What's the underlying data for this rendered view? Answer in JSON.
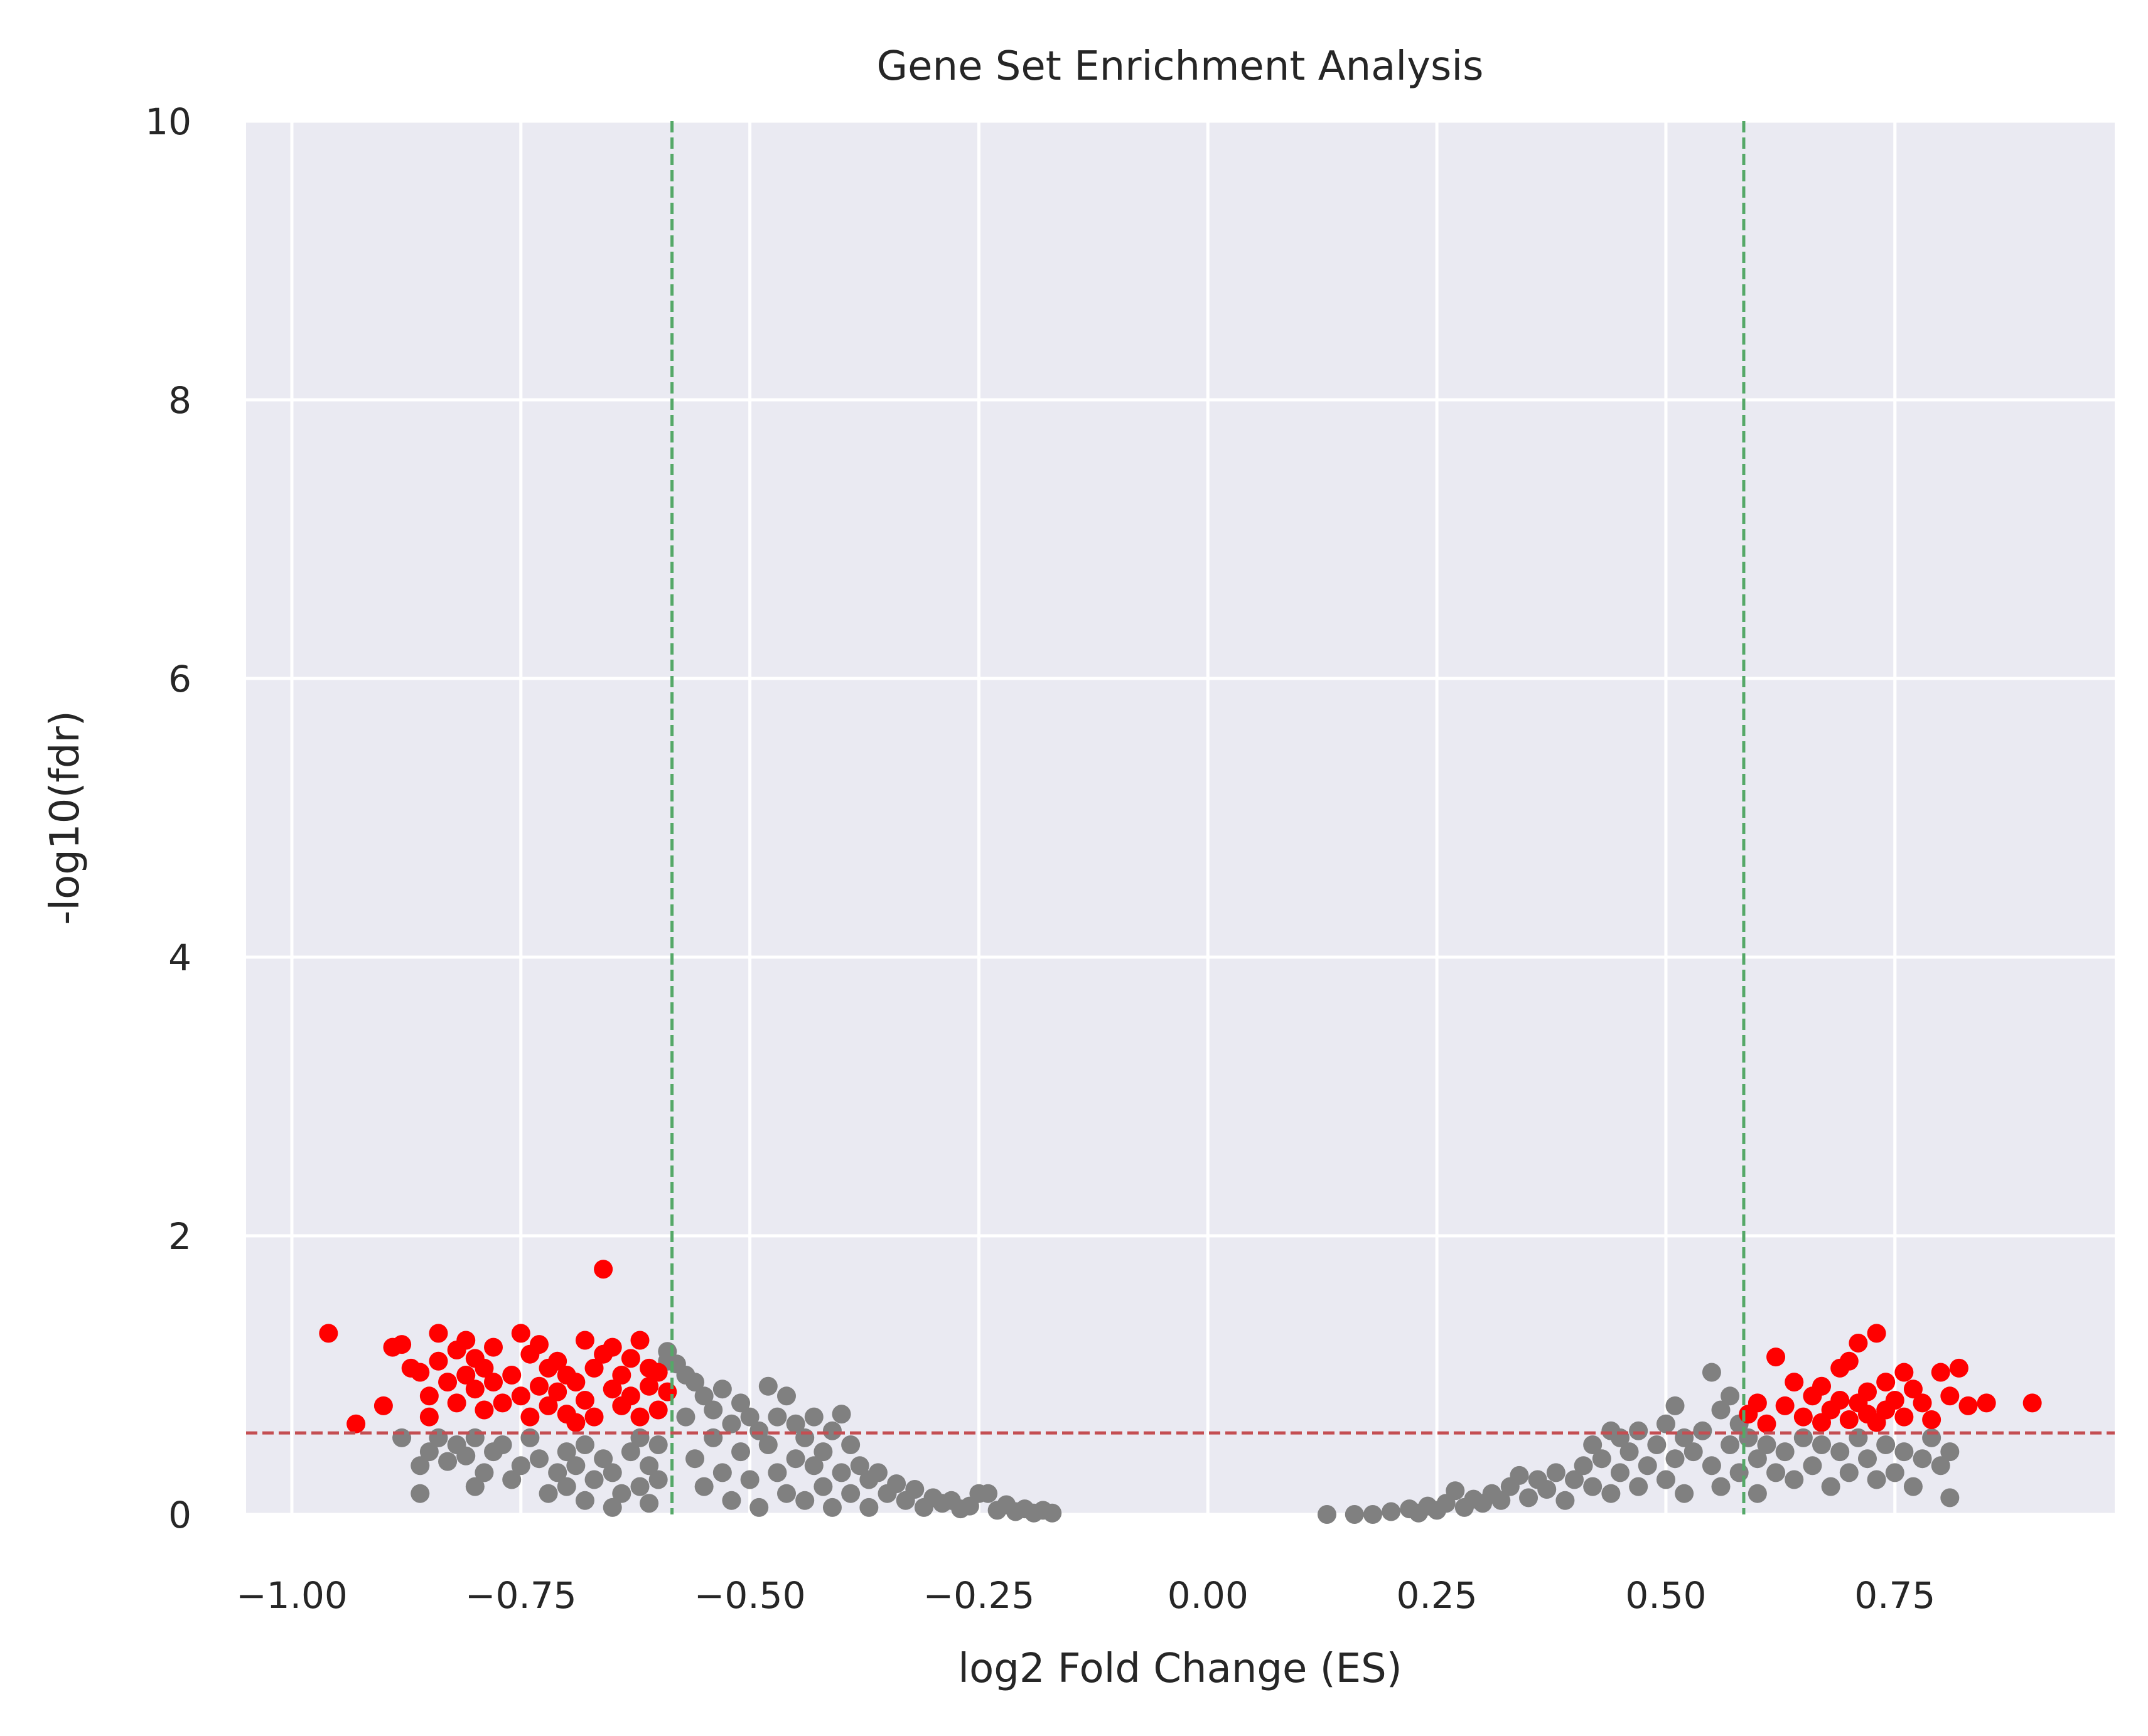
{
  "chart_data": {
    "type": "scatter",
    "title": "Gene Set Enrichment Analysis",
    "xlabel": "log2 Fold Change (ES)",
    "ylabel": "-log10(fdr)",
    "xlim": [
      -1.05,
      0.99
    ],
    "ylim": [
      0,
      10
    ],
    "xticks": [
      -1.0,
      -0.75,
      -0.5,
      -0.25,
      0.0,
      0.25,
      0.5,
      0.75
    ],
    "xtick_labels": [
      "−1.00",
      "−0.75",
      "−0.50",
      "−0.25",
      "0.00",
      "0.25",
      "0.50",
      "0.75"
    ],
    "yticks": [
      0,
      2,
      4,
      6,
      8,
      10
    ],
    "ytick_labels": [
      "0",
      "2",
      "4",
      "6",
      "8",
      "10"
    ],
    "grid": true,
    "style": {
      "background": "#eaeaf2",
      "grid_color": "#ffffff"
    },
    "thresholds": {
      "vertical": [
        -0.585,
        0.585
      ],
      "horizontal": 0.585,
      "vertical_color": "#55a868",
      "horizontal_color": "#c44e52"
    },
    "series": [
      {
        "color": "#808080",
        "points": [
          [
            -0.88,
            0.55
          ],
          [
            -0.86,
            0.15
          ],
          [
            -0.86,
            0.35
          ],
          [
            -0.85,
            0.45
          ],
          [
            -0.84,
            0.55
          ],
          [
            -0.83,
            0.38
          ],
          [
            -0.82,
            0.5
          ],
          [
            -0.81,
            0.42
          ],
          [
            -0.8,
            0.2
          ],
          [
            -0.8,
            0.55
          ],
          [
            -0.79,
            0.3
          ],
          [
            -0.78,
            0.45
          ],
          [
            -0.77,
            0.5
          ],
          [
            -0.76,
            0.25
          ],
          [
            -0.75,
            0.35
          ],
          [
            -0.74,
            0.55
          ],
          [
            -0.73,
            0.4
          ],
          [
            -0.72,
            0.15
          ],
          [
            -0.71,
            0.3
          ],
          [
            -0.7,
            0.45
          ],
          [
            -0.7,
            0.2
          ],
          [
            -0.69,
            0.35
          ],
          [
            -0.68,
            0.1
          ],
          [
            -0.68,
            0.5
          ],
          [
            -0.67,
            0.25
          ],
          [
            -0.66,
            0.4
          ],
          [
            -0.65,
            0.05
          ],
          [
            -0.65,
            0.3
          ],
          [
            -0.64,
            0.15
          ],
          [
            -0.63,
            0.45
          ],
          [
            -0.62,
            0.2
          ],
          [
            -0.62,
            0.55
          ],
          [
            -0.61,
            0.08
          ],
          [
            -0.61,
            0.35
          ],
          [
            -0.6,
            0.25
          ],
          [
            -0.6,
            0.5
          ],
          [
            -0.59,
            1.17
          ],
          [
            -0.59,
            1.1
          ],
          [
            -0.58,
            1.08
          ],
          [
            -0.57,
            1.0
          ],
          [
            -0.57,
            0.7
          ],
          [
            -0.56,
            0.95
          ],
          [
            -0.56,
            0.4
          ],
          [
            -0.55,
            0.85
          ],
          [
            -0.55,
            0.2
          ],
          [
            -0.54,
            0.75
          ],
          [
            -0.54,
            0.55
          ],
          [
            -0.53,
            0.9
          ],
          [
            -0.53,
            0.3
          ],
          [
            -0.52,
            0.65
          ],
          [
            -0.52,
            0.1
          ],
          [
            -0.51,
            0.8
          ],
          [
            -0.51,
            0.45
          ],
          [
            -0.5,
            0.7
          ],
          [
            -0.5,
            0.25
          ],
          [
            -0.49,
            0.6
          ],
          [
            -0.49,
            0.05
          ],
          [
            -0.48,
            0.92
          ],
          [
            -0.48,
            0.5
          ],
          [
            -0.47,
            0.7
          ],
          [
            -0.47,
            0.3
          ],
          [
            -0.46,
            0.85
          ],
          [
            -0.46,
            0.15
          ],
          [
            -0.45,
            0.65
          ],
          [
            -0.45,
            0.4
          ],
          [
            -0.44,
            0.55
          ],
          [
            -0.44,
            0.1
          ],
          [
            -0.43,
            0.7
          ],
          [
            -0.43,
            0.35
          ],
          [
            -0.42,
            0.45
          ],
          [
            -0.42,
            0.2
          ],
          [
            -0.41,
            0.6
          ],
          [
            -0.41,
            0.05
          ],
          [
            -0.4,
            0.72
          ],
          [
            -0.4,
            0.3
          ],
          [
            -0.39,
            0.5
          ],
          [
            -0.39,
            0.15
          ],
          [
            -0.38,
            0.35
          ],
          [
            -0.37,
            0.25
          ],
          [
            -0.37,
            0.05
          ],
          [
            -0.36,
            0.3
          ],
          [
            -0.35,
            0.15
          ],
          [
            -0.34,
            0.22
          ],
          [
            -0.33,
            0.1
          ],
          [
            -0.32,
            0.18
          ],
          [
            -0.31,
            0.05
          ],
          [
            -0.3,
            0.12
          ],
          [
            -0.29,
            0.08
          ],
          [
            -0.28,
            0.1
          ],
          [
            -0.27,
            0.04
          ],
          [
            -0.26,
            0.06
          ],
          [
            -0.25,
            0.15
          ],
          [
            -0.24,
            0.15
          ],
          [
            -0.23,
            0.03
          ],
          [
            -0.22,
            0.07
          ],
          [
            -0.21,
            0.02
          ],
          [
            -0.2,
            0.04
          ],
          [
            -0.19,
            0.01
          ],
          [
            -0.18,
            0.03
          ],
          [
            -0.17,
            0.01
          ],
          [
            0.13,
            0.0
          ],
          [
            0.16,
            0.0
          ],
          [
            0.18,
            0.0
          ],
          [
            0.2,
            0.02
          ],
          [
            0.22,
            0.04
          ],
          [
            0.23,
            0.01
          ],
          [
            0.24,
            0.06
          ],
          [
            0.25,
            0.03
          ],
          [
            0.26,
            0.08
          ],
          [
            0.27,
            0.17
          ],
          [
            0.28,
            0.05
          ],
          [
            0.29,
            0.11
          ],
          [
            0.3,
            0.08
          ],
          [
            0.31,
            0.15
          ],
          [
            0.32,
            0.1
          ],
          [
            0.33,
            0.2
          ],
          [
            0.34,
            0.28
          ],
          [
            0.35,
            0.12
          ],
          [
            0.36,
            0.25
          ],
          [
            0.37,
            0.18
          ],
          [
            0.38,
            0.3
          ],
          [
            0.39,
            0.1
          ],
          [
            0.4,
            0.25
          ],
          [
            0.41,
            0.35
          ],
          [
            0.42,
            0.2
          ],
          [
            0.42,
            0.5
          ],
          [
            0.43,
            0.4
          ],
          [
            0.44,
            0.15
          ],
          [
            0.44,
            0.6
          ],
          [
            0.45,
            0.3
          ],
          [
            0.45,
            0.55
          ],
          [
            0.46,
            0.45
          ],
          [
            0.47,
            0.2
          ],
          [
            0.47,
            0.6
          ],
          [
            0.48,
            0.35
          ],
          [
            0.49,
            0.5
          ],
          [
            0.5,
            0.25
          ],
          [
            0.5,
            0.65
          ],
          [
            0.51,
            0.4
          ],
          [
            0.51,
            0.78
          ],
          [
            0.52,
            0.55
          ],
          [
            0.52,
            0.15
          ],
          [
            0.53,
            0.45
          ],
          [
            0.54,
            0.6
          ],
          [
            0.55,
            1.02
          ],
          [
            0.55,
            0.35
          ],
          [
            0.56,
            0.75
          ],
          [
            0.56,
            0.2
          ],
          [
            0.57,
            0.85
          ],
          [
            0.57,
            0.5
          ],
          [
            0.58,
            0.65
          ],
          [
            0.58,
            0.3
          ],
          [
            0.59,
            0.55
          ],
          [
            0.6,
            0.4
          ],
          [
            0.6,
            0.15
          ],
          [
            0.61,
            0.5
          ],
          [
            0.62,
            0.3
          ],
          [
            0.63,
            0.45
          ],
          [
            0.64,
            0.25
          ],
          [
            0.65,
            0.55
          ],
          [
            0.66,
            0.35
          ],
          [
            0.67,
            0.5
          ],
          [
            0.68,
            0.2
          ],
          [
            0.69,
            0.45
          ],
          [
            0.7,
            0.3
          ],
          [
            0.71,
            0.55
          ],
          [
            0.72,
            0.4
          ],
          [
            0.73,
            0.25
          ],
          [
            0.74,
            0.5
          ],
          [
            0.75,
            0.3
          ],
          [
            0.76,
            0.45
          ],
          [
            0.77,
            0.2
          ],
          [
            0.78,
            0.4
          ],
          [
            0.79,
            0.55
          ],
          [
            0.8,
            0.35
          ],
          [
            0.81,
            0.12
          ],
          [
            0.81,
            0.45
          ]
        ]
      },
      {
        "color": "#ff0000",
        "points": [
          [
            -0.96,
            1.3
          ],
          [
            -0.93,
            0.65
          ],
          [
            -0.9,
            0.78
          ],
          [
            -0.89,
            1.2
          ],
          [
            -0.88,
            1.22
          ],
          [
            -0.87,
            1.05
          ],
          [
            -0.86,
            1.02
          ],
          [
            -0.85,
            0.85
          ],
          [
            -0.85,
            0.7
          ],
          [
            -0.84,
            1.3
          ],
          [
            -0.84,
            1.1
          ],
          [
            -0.83,
            0.95
          ],
          [
            -0.82,
            1.18
          ],
          [
            -0.82,
            0.8
          ],
          [
            -0.81,
            1.25
          ],
          [
            -0.81,
            1.0
          ],
          [
            -0.8,
            0.9
          ],
          [
            -0.8,
            1.12
          ],
          [
            -0.79,
            1.05
          ],
          [
            -0.79,
            0.75
          ],
          [
            -0.78,
            0.95
          ],
          [
            -0.78,
            1.2
          ],
          [
            -0.77,
            0.8
          ],
          [
            -0.76,
            1.0
          ],
          [
            -0.75,
            0.85
          ],
          [
            -0.75,
            1.3
          ],
          [
            -0.74,
            1.15
          ],
          [
            -0.74,
            0.7
          ],
          [
            -0.73,
            0.92
          ],
          [
            -0.73,
            1.22
          ],
          [
            -0.72,
            1.05
          ],
          [
            -0.72,
            0.78
          ],
          [
            -0.71,
            1.1
          ],
          [
            -0.71,
            0.88
          ],
          [
            -0.7,
            0.72
          ],
          [
            -0.7,
            1.0
          ],
          [
            -0.69,
            0.95
          ],
          [
            -0.69,
            0.66
          ],
          [
            -0.68,
            1.25
          ],
          [
            -0.68,
            0.82
          ],
          [
            -0.67,
            1.05
          ],
          [
            -0.67,
            0.7
          ],
          [
            -0.66,
            1.76
          ],
          [
            -0.66,
            1.15
          ],
          [
            -0.65,
            0.9
          ],
          [
            -0.65,
            1.2
          ],
          [
            -0.64,
            1.0
          ],
          [
            -0.64,
            0.78
          ],
          [
            -0.63,
            1.12
          ],
          [
            -0.63,
            0.85
          ],
          [
            -0.62,
            1.25
          ],
          [
            -0.62,
            0.7
          ],
          [
            -0.61,
            1.05
          ],
          [
            -0.61,
            0.92
          ],
          [
            -0.6,
            0.75
          ],
          [
            -0.6,
            1.02
          ],
          [
            -0.59,
            0.88
          ],
          [
            0.59,
            0.72
          ],
          [
            0.6,
            0.8
          ],
          [
            0.61,
            0.65
          ],
          [
            0.62,
            1.13
          ],
          [
            0.63,
            0.78
          ],
          [
            0.64,
            0.95
          ],
          [
            0.65,
            0.7
          ],
          [
            0.66,
            0.85
          ],
          [
            0.67,
            0.92
          ],
          [
            0.67,
            0.66
          ],
          [
            0.68,
            0.75
          ],
          [
            0.69,
            1.05
          ],
          [
            0.69,
            0.82
          ],
          [
            0.7,
            1.1
          ],
          [
            0.7,
            0.68
          ],
          [
            0.71,
            1.23
          ],
          [
            0.71,
            0.8
          ],
          [
            0.72,
            0.72
          ],
          [
            0.72,
            0.88
          ],
          [
            0.73,
            1.3
          ],
          [
            0.73,
            0.66
          ],
          [
            0.74,
            0.95
          ],
          [
            0.74,
            0.75
          ],
          [
            0.75,
            0.82
          ],
          [
            0.76,
            1.02
          ],
          [
            0.76,
            0.7
          ],
          [
            0.77,
            0.9
          ],
          [
            0.78,
            0.8
          ],
          [
            0.79,
            0.68
          ],
          [
            0.8,
            1.02
          ],
          [
            0.81,
            0.85
          ],
          [
            0.82,
            1.05
          ],
          [
            0.83,
            0.78
          ],
          [
            0.85,
            0.8
          ],
          [
            0.9,
            0.8
          ]
        ]
      }
    ]
  }
}
